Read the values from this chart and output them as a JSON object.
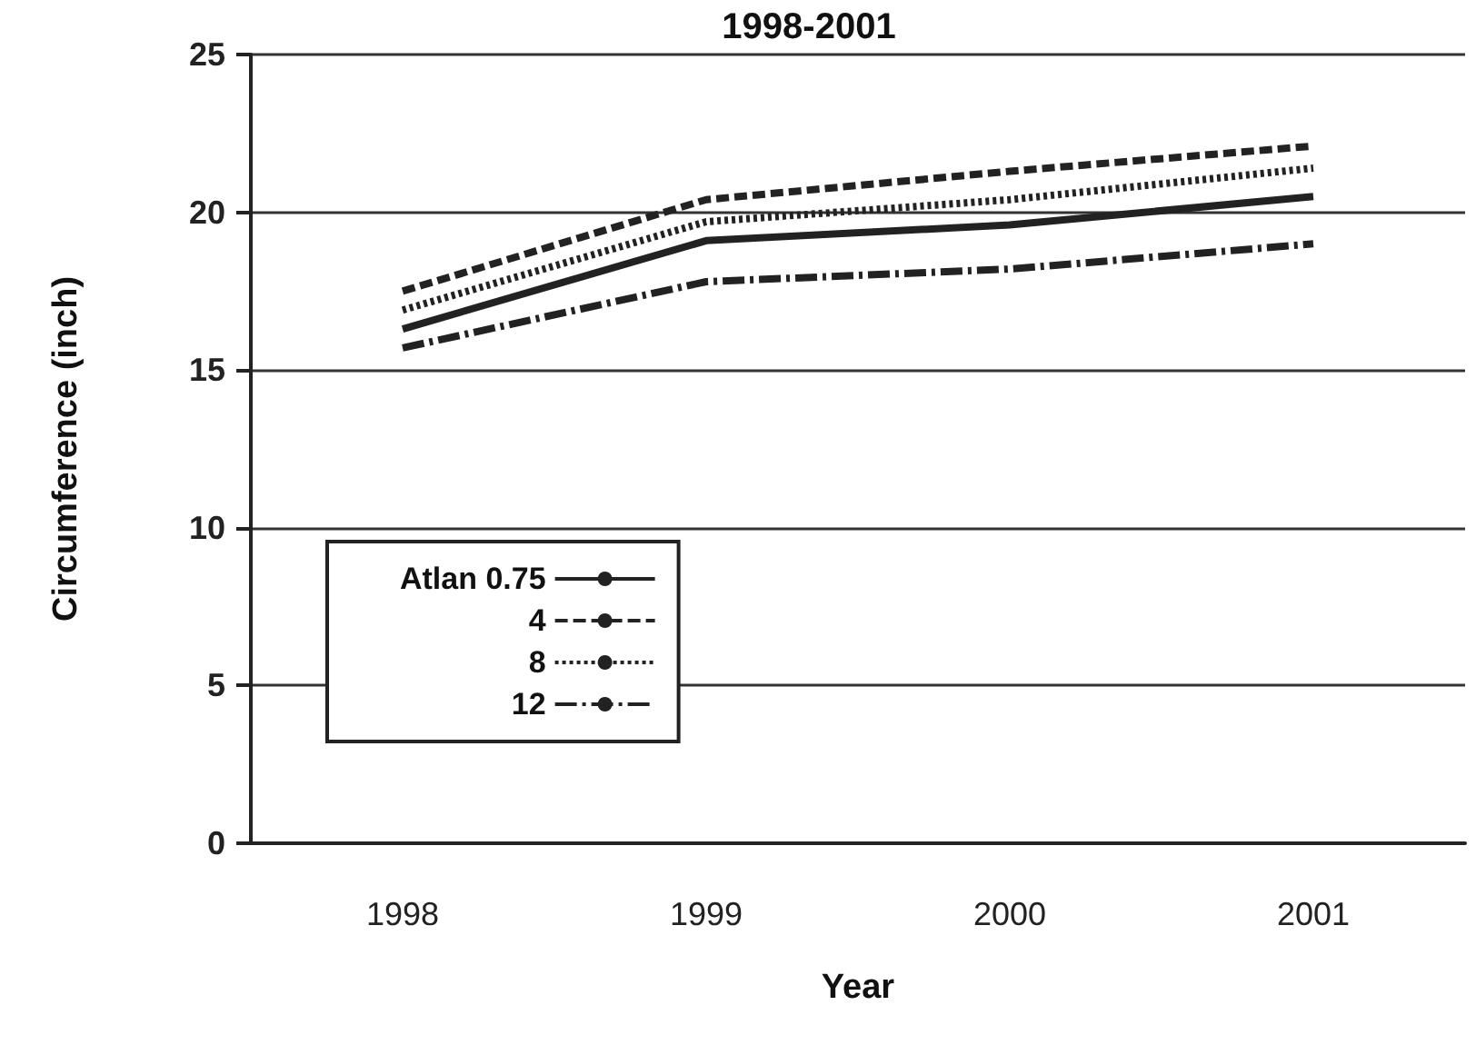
{
  "chart_data": {
    "type": "line",
    "title": "1998-2001",
    "xlabel": "Year",
    "ylabel": "Circumference (inch)",
    "categories": [
      "1998",
      "1999",
      "2000",
      "2001"
    ],
    "series": [
      {
        "name": "Atlan 0.75",
        "color": "#222222",
        "line_style": "solid",
        "values": [
          16.3,
          19.1,
          19.6,
          20.5
        ]
      },
      {
        "name": "4",
        "color": "#222222",
        "line_style": "dashed",
        "values": [
          17.5,
          20.4,
          21.3,
          22.1
        ]
      },
      {
        "name": "8",
        "color": "#222222",
        "line_style": "dotted",
        "values": [
          16.9,
          19.7,
          20.4,
          21.4
        ]
      },
      {
        "name": "12",
        "color": "#222222",
        "line_style": "dashdot",
        "values": [
          15.7,
          17.8,
          18.2,
          19.0
        ]
      }
    ],
    "ylim": [
      0,
      25
    ],
    "yticks": [
      0,
      5,
      10,
      15,
      20,
      25
    ],
    "grid": "y",
    "legend": "left",
    "marker": "none"
  }
}
